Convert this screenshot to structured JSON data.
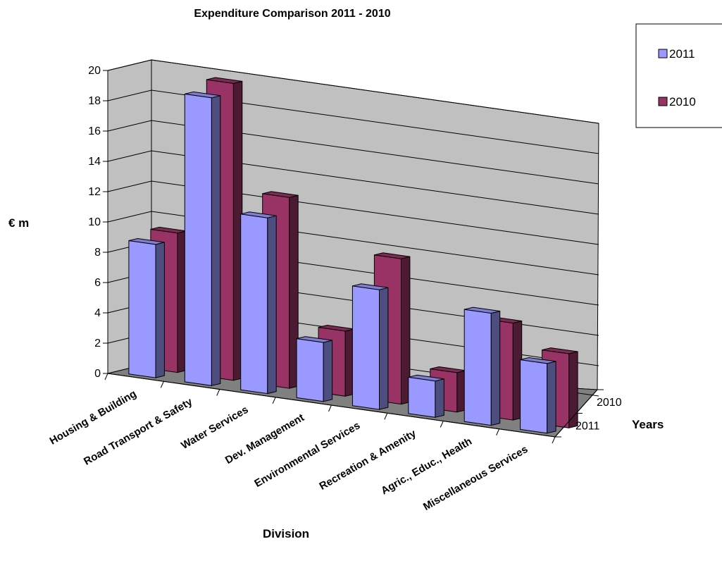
{
  "chart_data": {
    "type": "bar",
    "title": "Expenditure Comparison 2011 - 2010",
    "xlabel": "Division",
    "ylabel": "€ m",
    "zlabel": "Years",
    "categories": [
      "Housing & Building",
      "Road Transport & Safety",
      "Water Services",
      "Dev. Management",
      "Environmental Services",
      "Recreation & Amenity",
      "Agric., Educ., Health",
      "Miscellaneous Services"
    ],
    "series": [
      {
        "name": "2011",
        "values": [
          8.8,
          19.0,
          11.6,
          3.9,
          7.9,
          2.4,
          7.4,
          4.6
        ],
        "color": "#9999ff"
      },
      {
        "name": "2010",
        "values": [
          9.2,
          19.6,
          12.6,
          4.3,
          9.6,
          2.6,
          6.4,
          4.9
        ],
        "color": "#993366"
      }
    ],
    "ylim": [
      0,
      20
    ],
    "yticks": [
      0,
      2,
      4,
      6,
      8,
      10,
      12,
      14,
      16,
      18,
      20
    ],
    "depth_labels": [
      "2011",
      "2010"
    ],
    "legend_position": "top-right",
    "grid": true,
    "colors": {
      "wall": "#c0c0c0",
      "floor": "#808080",
      "grid": "#000000"
    }
  }
}
